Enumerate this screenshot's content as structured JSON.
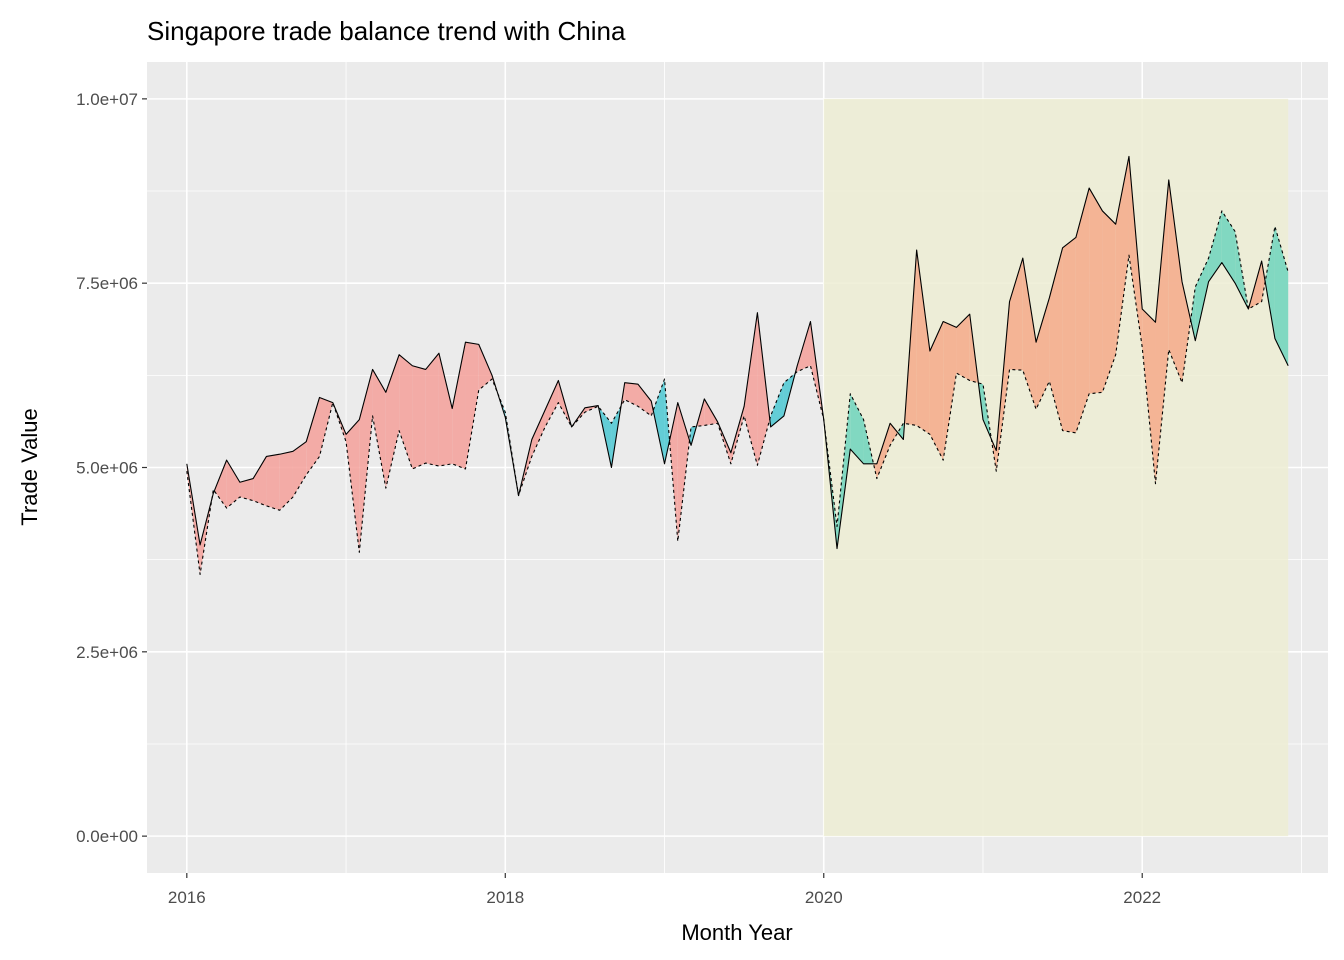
{
  "chart_data": {
    "type": "area",
    "title": "Singapore trade balance trend with China",
    "xlabel": "Month Year",
    "ylabel": "Trade Value",
    "x_ticks": [
      "2016",
      "2018",
      "2020",
      "2022"
    ],
    "y_ticks": [
      "0.0e+00",
      "2.5e+06",
      "5.0e+06",
      "7.5e+06",
      "1.0e+07"
    ],
    "ylim": [
      -500000,
      10500000
    ],
    "xlim": [
      "2015-10",
      "2023-03"
    ],
    "grid": true,
    "legend": "none",
    "highlight_period": {
      "start": "2020-01",
      "end": "2022-12",
      "y_top": 10000000
    },
    "x": [
      "2016-01",
      "2016-02",
      "2016-03",
      "2016-04",
      "2016-05",
      "2016-06",
      "2016-07",
      "2016-08",
      "2016-09",
      "2016-10",
      "2016-11",
      "2016-12",
      "2017-01",
      "2017-02",
      "2017-03",
      "2017-04",
      "2017-05",
      "2017-06",
      "2017-07",
      "2017-08",
      "2017-09",
      "2017-10",
      "2017-11",
      "2017-12",
      "2018-01",
      "2018-02",
      "2018-03",
      "2018-04",
      "2018-05",
      "2018-06",
      "2018-07",
      "2018-08",
      "2018-09",
      "2018-10",
      "2018-11",
      "2018-12",
      "2019-01",
      "2019-02",
      "2019-03",
      "2019-04",
      "2019-05",
      "2019-06",
      "2019-07",
      "2019-08",
      "2019-09",
      "2019-10",
      "2019-11",
      "2019-12",
      "2020-01",
      "2020-02",
      "2020-03",
      "2020-04",
      "2020-05",
      "2020-06",
      "2020-07",
      "2020-08",
      "2020-09",
      "2020-10",
      "2020-11",
      "2020-12",
      "2021-01",
      "2021-02",
      "2021-03",
      "2021-04",
      "2021-05",
      "2021-06",
      "2021-07",
      "2021-08",
      "2021-09",
      "2021-10",
      "2021-11",
      "2021-12",
      "2022-01",
      "2022-02",
      "2022-03",
      "2022-04",
      "2022-05",
      "2022-06",
      "2022-07",
      "2022-08",
      "2022-09",
      "2022-10",
      "2022-11",
      "2022-12"
    ],
    "series": [
      {
        "line_style": "solid",
        "values": [
          5050000,
          3950000,
          4650000,
          5100000,
          4800000,
          4850000,
          5150000,
          5180000,
          5220000,
          5350000,
          5950000,
          5880000,
          5450000,
          5650000,
          6330000,
          6020000,
          6530000,
          6380000,
          6330000,
          6550000,
          5800000,
          6700000,
          6670000,
          6250000,
          5680000,
          4620000,
          5380000,
          5780000,
          6180000,
          5550000,
          5810000,
          5840000,
          5000000,
          6150000,
          6130000,
          5900000,
          5050000,
          5880000,
          5300000,
          5930000,
          5620000,
          5200000,
          5830000,
          7100000,
          5550000,
          5700000,
          6380000,
          6980000,
          5650000,
          3900000,
          5250000,
          5050000,
          5050000,
          5600000,
          5380000,
          7950000,
          6580000,
          6980000,
          6900000,
          7080000,
          5650000,
          5230000,
          7250000,
          7840000,
          6700000,
          7300000,
          7980000,
          8120000,
          8790000,
          8480000,
          8300000,
          9220000,
          7150000,
          6970000,
          8900000,
          7520000,
          6720000,
          7520000,
          7780000,
          7500000,
          7150000,
          7800000,
          6750000,
          6380000
        ]
      },
      {
        "line_style": "dashed",
        "values": [
          4950000,
          3550000,
          4700000,
          4450000,
          4600000,
          4550000,
          4480000,
          4420000,
          4600000,
          4900000,
          5150000,
          5880000,
          5350000,
          3850000,
          5700000,
          4720000,
          5500000,
          4980000,
          5060000,
          5020000,
          5050000,
          4980000,
          6050000,
          6200000,
          5750000,
          4620000,
          5150000,
          5550000,
          5880000,
          5550000,
          5750000,
          5830000,
          5600000,
          5920000,
          5830000,
          5700000,
          6200000,
          4000000,
          5550000,
          5570000,
          5600000,
          5050000,
          5700000,
          5030000,
          5700000,
          6150000,
          6300000,
          6380000,
          5650000,
          4200000,
          6000000,
          5650000,
          4850000,
          5300000,
          5600000,
          5570000,
          5450000,
          5100000,
          6280000,
          6180000,
          6130000,
          4950000,
          6330000,
          6320000,
          5790000,
          6170000,
          5500000,
          5470000,
          6000000,
          6020000,
          6530000,
          7880000,
          6630000,
          4780000,
          6600000,
          6150000,
          7450000,
          7840000,
          8480000,
          8200000,
          7150000,
          7250000,
          8270000,
          7650000
        ]
      }
    ],
    "colors": {
      "series1_above_2016_2019": "#F4A09A",
      "series2_above_2016_2019": "#4BC8D2",
      "series1_above_2020_2022": "#F5A98A",
      "series2_above_2020_2022": "#6DD3BD",
      "highlight": "#EDEDD3",
      "panel": "#EBEBEB",
      "grid_major": "#FFFFFF"
    }
  }
}
